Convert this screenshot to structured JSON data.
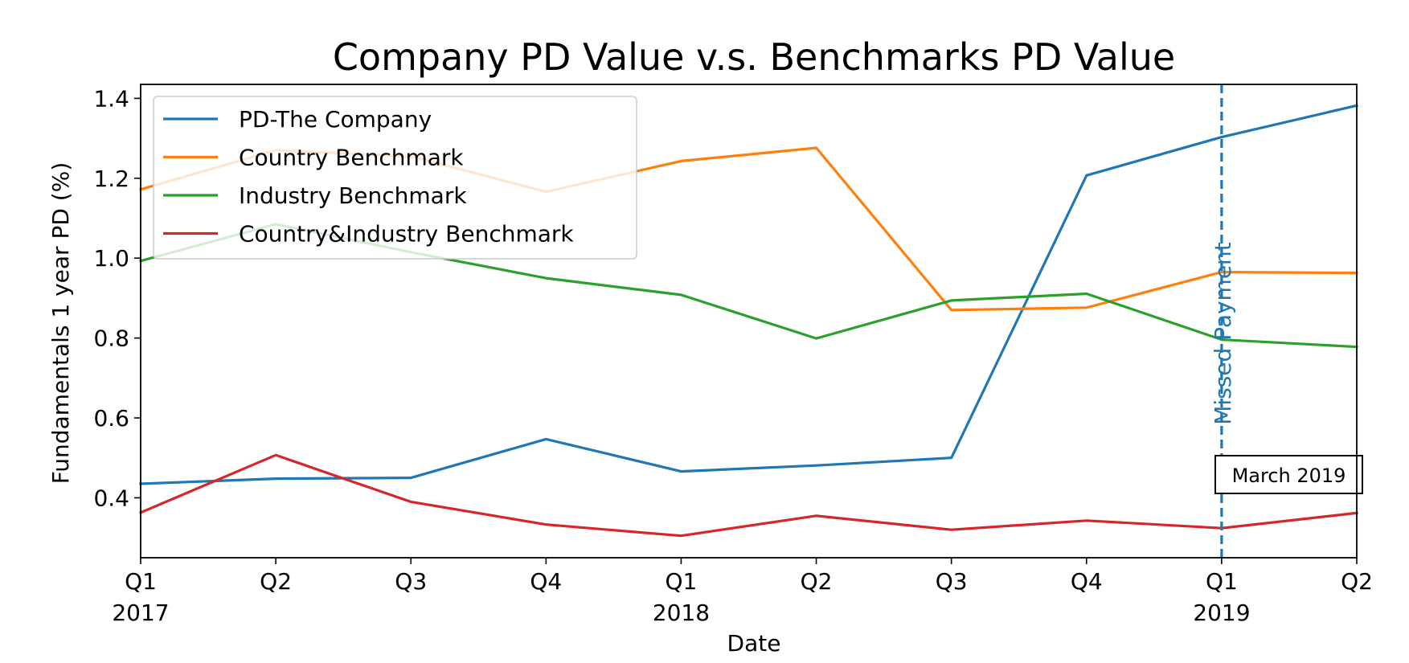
{
  "chart_data": {
    "type": "line",
    "title": "Company PD Value v.s. Benchmarks PD Value",
    "xlabel": "Date",
    "ylabel": "Fundamentals 1 year PD (%)",
    "x": [
      "2017-Q1",
      "2017-Q2",
      "2017-Q3",
      "2017-Q4",
      "2018-Q1",
      "2018-Q2",
      "2018-Q3",
      "2018-Q4",
      "2019-Q1",
      "2019-Q2"
    ],
    "x_tick_labels": [
      {
        "quarter": "Q1",
        "year": "2017"
      },
      {
        "quarter": "Q2",
        "year": ""
      },
      {
        "quarter": "Q3",
        "year": ""
      },
      {
        "quarter": "Q4",
        "year": ""
      },
      {
        "quarter": "Q1",
        "year": "2018"
      },
      {
        "quarter": "Q2",
        "year": ""
      },
      {
        "quarter": "Q3",
        "year": ""
      },
      {
        "quarter": "Q4",
        "year": ""
      },
      {
        "quarter": "Q1",
        "year": "2019"
      },
      {
        "quarter": "Q2",
        "year": ""
      }
    ],
    "ylim": [
      0.25,
      1.435
    ],
    "y_ticks": [
      "0.4",
      "0.6",
      "0.8",
      "1.0",
      "1.2",
      "1.4"
    ],
    "grid": false,
    "legend_position": "upper-left",
    "series": [
      {
        "name": "PD-The Company",
        "color": "#1f77b4",
        "values": [
          0.435,
          0.448,
          0.45,
          0.547,
          0.466,
          0.481,
          0.5,
          1.207,
          1.303,
          1.382
        ]
      },
      {
        "name": "Country Benchmark",
        "color": "#ff7f0e",
        "values": [
          1.172,
          1.27,
          1.255,
          1.166,
          1.243,
          1.276,
          0.87,
          0.876,
          0.965,
          0.963
        ]
      },
      {
        "name": "Industry Benchmark",
        "color": "#2ca02c",
        "values": [
          0.993,
          1.085,
          1.015,
          0.95,
          0.908,
          0.799,
          0.894,
          0.911,
          0.796,
          0.778
        ]
      },
      {
        "name": "Country&Industry Benchmark",
        "color": "#d62728",
        "values": [
          0.363,
          0.507,
          0.39,
          0.333,
          0.305,
          0.355,
          0.32,
          0.343,
          0.324,
          0.362
        ]
      }
    ],
    "annotations": {
      "vline": {
        "x": "2019-Q1",
        "label": "Missed Payment",
        "color": "#1f77b4",
        "style": "dashed"
      },
      "box_label": "March 2019"
    }
  }
}
